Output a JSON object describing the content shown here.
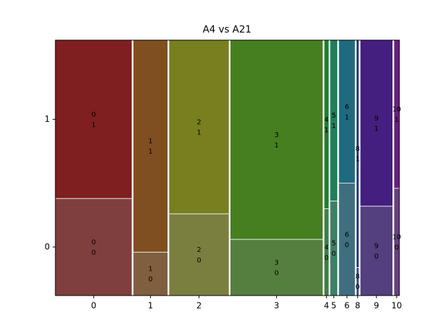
{
  "chart_data": {
    "type": "mosaic",
    "title": "A4 vs A21",
    "categories": [
      "0",
      "1",
      "2",
      "3",
      "4",
      "5",
      "6",
      "8",
      "9",
      "10"
    ],
    "widths": [
      22.3,
      10.1,
      17.5,
      27,
      1.4,
      2.2,
      4.8,
      0.8,
      9.5,
      1.6
    ],
    "series": [
      {
        "name": "0",
        "values": [
          38,
          17,
          32,
          22,
          34,
          37,
          44,
          11,
          35,
          42
        ],
        "color": [
          "#7f3f3f",
          "#7f5f3f",
          "#7a7f3f",
          "#557f3f",
          "#3f7f46",
          "#3f7f66",
          "#3f6f7f",
          "#3f4f7f",
          "#543f7f",
          "#6a3f7f"
        ]
      },
      {
        "name": "1",
        "values": [
          62,
          83,
          68,
          78,
          66,
          63,
          56,
          89,
          65,
          58
        ],
        "color": [
          "#7f1f1f",
          "#7f4f1f",
          "#777f1f",
          "#467f1f",
          "#1f7f2a",
          "#1f7f5a",
          "#1f6a7f",
          "#1f3a7f",
          "#451f7f",
          "#6a1f7f"
        ]
      }
    ]
  }
}
